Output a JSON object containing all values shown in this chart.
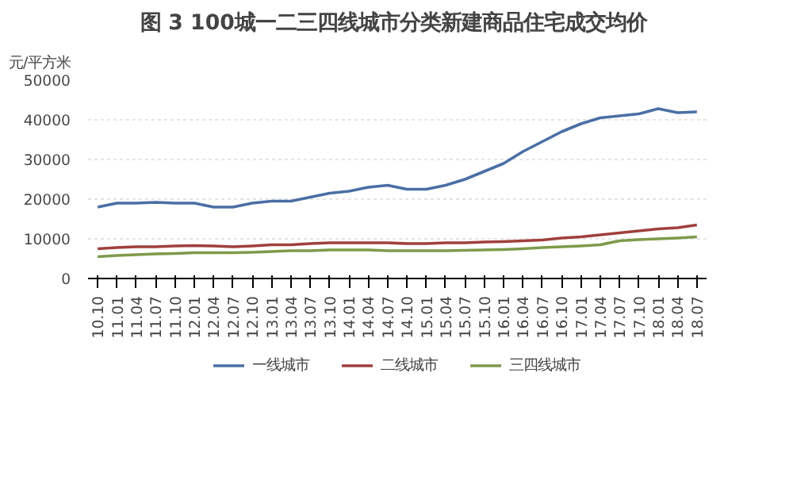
{
  "chart_data": {
    "type": "line",
    "title": "图 3  100城一二三四线城市分类新建商品住宅成交均价",
    "ylabel": "元/平方米",
    "categories": [
      "10.10",
      "11.01",
      "11.04",
      "11.07",
      "11.10",
      "12.01",
      "12.04",
      "12.07",
      "12.10",
      "13.01",
      "13.04",
      "13.07",
      "13.10",
      "14.01",
      "14.04",
      "14.07",
      "14.10",
      "15.01",
      "15.04",
      "15.07",
      "15.10",
      "16.01",
      "16.04",
      "16.07",
      "16.10",
      "17.01",
      "17.04",
      "17.07",
      "17.10",
      "18.01",
      "18.04",
      "18.07"
    ],
    "series": [
      {
        "name": "一线城市",
        "color": "#4a6fa5",
        "values": [
          18000,
          19000,
          19000,
          19200,
          19000,
          19000,
          18000,
          18000,
          19000,
          19500,
          19500,
          20500,
          21500,
          22000,
          23000,
          23500,
          22500,
          22500,
          23500,
          25000,
          27000,
          29000,
          32000,
          34500,
          37000,
          39000,
          40500,
          41000,
          41500,
          42800,
          41800,
          42000
        ]
      },
      {
        "name": "二线城市",
        "color": "#a0403c",
        "values": [
          7500,
          7800,
          8000,
          8000,
          8200,
          8300,
          8200,
          8000,
          8200,
          8500,
          8500,
          8800,
          9000,
          9000,
          9000,
          9000,
          8800,
          8800,
          9000,
          9000,
          9200,
          9300,
          9500,
          9700,
          10200,
          10500,
          11000,
          11500,
          12000,
          12500,
          12800,
          13500
        ]
      },
      {
        "name": "三四线城市",
        "color": "#7f9a4a",
        "values": [
          5500,
          5800,
          6000,
          6200,
          6300,
          6500,
          6500,
          6500,
          6600,
          6800,
          7000,
          7000,
          7200,
          7200,
          7200,
          7000,
          7000,
          7000,
          7000,
          7100,
          7200,
          7300,
          7500,
          7800,
          8000,
          8200,
          8500,
          9500,
          9800,
          10000,
          10200,
          10500
        ]
      }
    ],
    "ylim": [
      0,
      50000
    ],
    "yticks": [
      0,
      10000,
      20000,
      30000,
      40000,
      50000
    ],
    "grid": "y",
    "legend": "bottom",
    "line_style": "solid",
    "marker": "none"
  }
}
